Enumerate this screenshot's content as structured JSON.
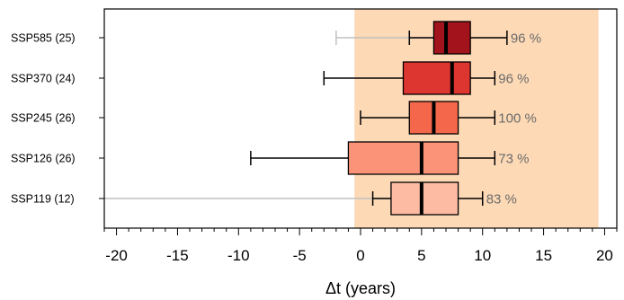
{
  "chart_data": {
    "type": "boxplot",
    "orientation": "horizontal",
    "xlabel": "Δt (years)",
    "xlim": [
      -21,
      21
    ],
    "x_ticks": [
      -20,
      -15,
      -10,
      -5,
      0,
      5,
      10,
      15,
      20
    ],
    "x_tick_labels": [
      "-20",
      "-15",
      "-10",
      "-5",
      "0",
      "5",
      "10",
      "15",
      "20"
    ],
    "shaded_range": {
      "from": -0.5,
      "to": 19.5,
      "color": "#fdd9b5"
    },
    "grid": false,
    "series": [
      {
        "label": "SSP585 (25)",
        "whisker_low": -2,
        "q1": 6,
        "median": 7,
        "q3": 9,
        "whisker_high": 12,
        "inner_tick": 4,
        "percent_label": "96 %",
        "box_color": "#a3131c",
        "low_whisker_color": "#c0c0c0"
      },
      {
        "label": "SSP370 (24)",
        "whisker_low": -3,
        "q1": 3.5,
        "median": 7.5,
        "q3": 9,
        "whisker_high": 11,
        "inner_tick": null,
        "percent_label": "96 %",
        "box_color": "#dd3530",
        "low_whisker_color": "#000000"
      },
      {
        "label": "SSP245 (26)",
        "whisker_low": 0,
        "q1": 4,
        "median": 6,
        "q3": 8,
        "whisker_high": 11,
        "inner_tick": null,
        "percent_label": "100 %",
        "box_color": "#f4674a",
        "low_whisker_color": "#000000"
      },
      {
        "label": "SSP126 (26)",
        "whisker_low": -9,
        "q1": -1,
        "median": 5,
        "q3": 8,
        "whisker_high": 11,
        "inner_tick": null,
        "percent_label": "73 %",
        "box_color": "#fb9378",
        "low_whisker_color": "#000000"
      },
      {
        "label": "SSP119 (12)",
        "whisker_low": -21,
        "q1": 2.5,
        "median": 5,
        "q3": 8,
        "whisker_high": 10,
        "inner_tick": 1,
        "percent_label": "83 %",
        "box_color": "#fcbba2",
        "low_whisker_color": "#c0c0c0"
      }
    ]
  }
}
